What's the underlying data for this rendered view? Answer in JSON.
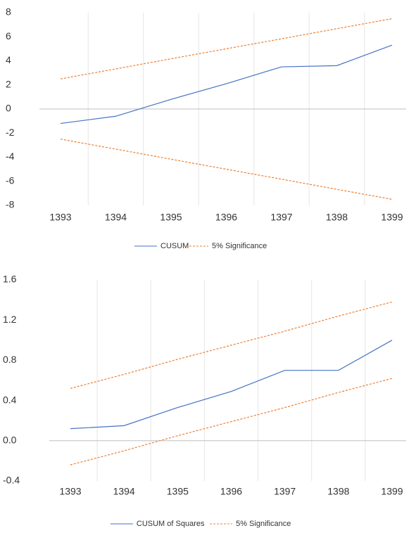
{
  "chart_data": [
    {
      "type": "line",
      "categories": [
        "1393",
        "1394",
        "1395",
        "1396",
        "1397",
        "1398",
        "1399"
      ],
      "series": [
        {
          "name": "CUSUM",
          "color": "#4472c4",
          "dashed": false,
          "values": [
            -1.2,
            -0.6,
            0.8,
            2.1,
            3.5,
            3.6,
            5.3
          ]
        },
        {
          "name": "5% Significance",
          "color": "#ed7d31",
          "dashed": true,
          "values": [
            2.5,
            3.33,
            4.17,
            5,
            5.83,
            6.67,
            7.5
          ]
        },
        {
          "name": "5% Significance",
          "color": "#ed7d31",
          "dashed": true,
          "values": [
            -2.5,
            -3.33,
            -4.17,
            -5,
            -5.83,
            -6.67,
            -7.5
          ]
        }
      ],
      "ylim": [
        -8,
        8
      ],
      "yticks": [
        -8,
        -6,
        -4,
        -2,
        0,
        2,
        4,
        6,
        8
      ],
      "grid": true,
      "legend": "bottom"
    },
    {
      "type": "line",
      "categories": [
        "1393",
        "1394",
        "1395",
        "1396",
        "1397",
        "1398",
        "1399"
      ],
      "series": [
        {
          "name": "CUSUM of Squares",
          "color": "#4472c4",
          "dashed": false,
          "values": [
            0.12,
            0.15,
            0.33,
            0.49,
            0.7,
            0.7,
            1.0
          ]
        },
        {
          "name": "5% Significance",
          "color": "#ed7d31",
          "dashed": true,
          "values": [
            0.52,
            0.66,
            0.81,
            0.95,
            1.09,
            1.24,
            1.38
          ]
        },
        {
          "name": "5% Significance",
          "color": "#ed7d31",
          "dashed": true,
          "values": [
            -0.24,
            -0.1,
            0.05,
            0.19,
            0.33,
            0.48,
            0.62
          ]
        }
      ],
      "ylim": [
        -0.4,
        1.6
      ],
      "yticks": [
        -0.4,
        {
          "value": 0,
          "label": "0.0"
        },
        0.4,
        0.8,
        1.2,
        1.6
      ],
      "grid": true,
      "legend": "bottom"
    }
  ]
}
